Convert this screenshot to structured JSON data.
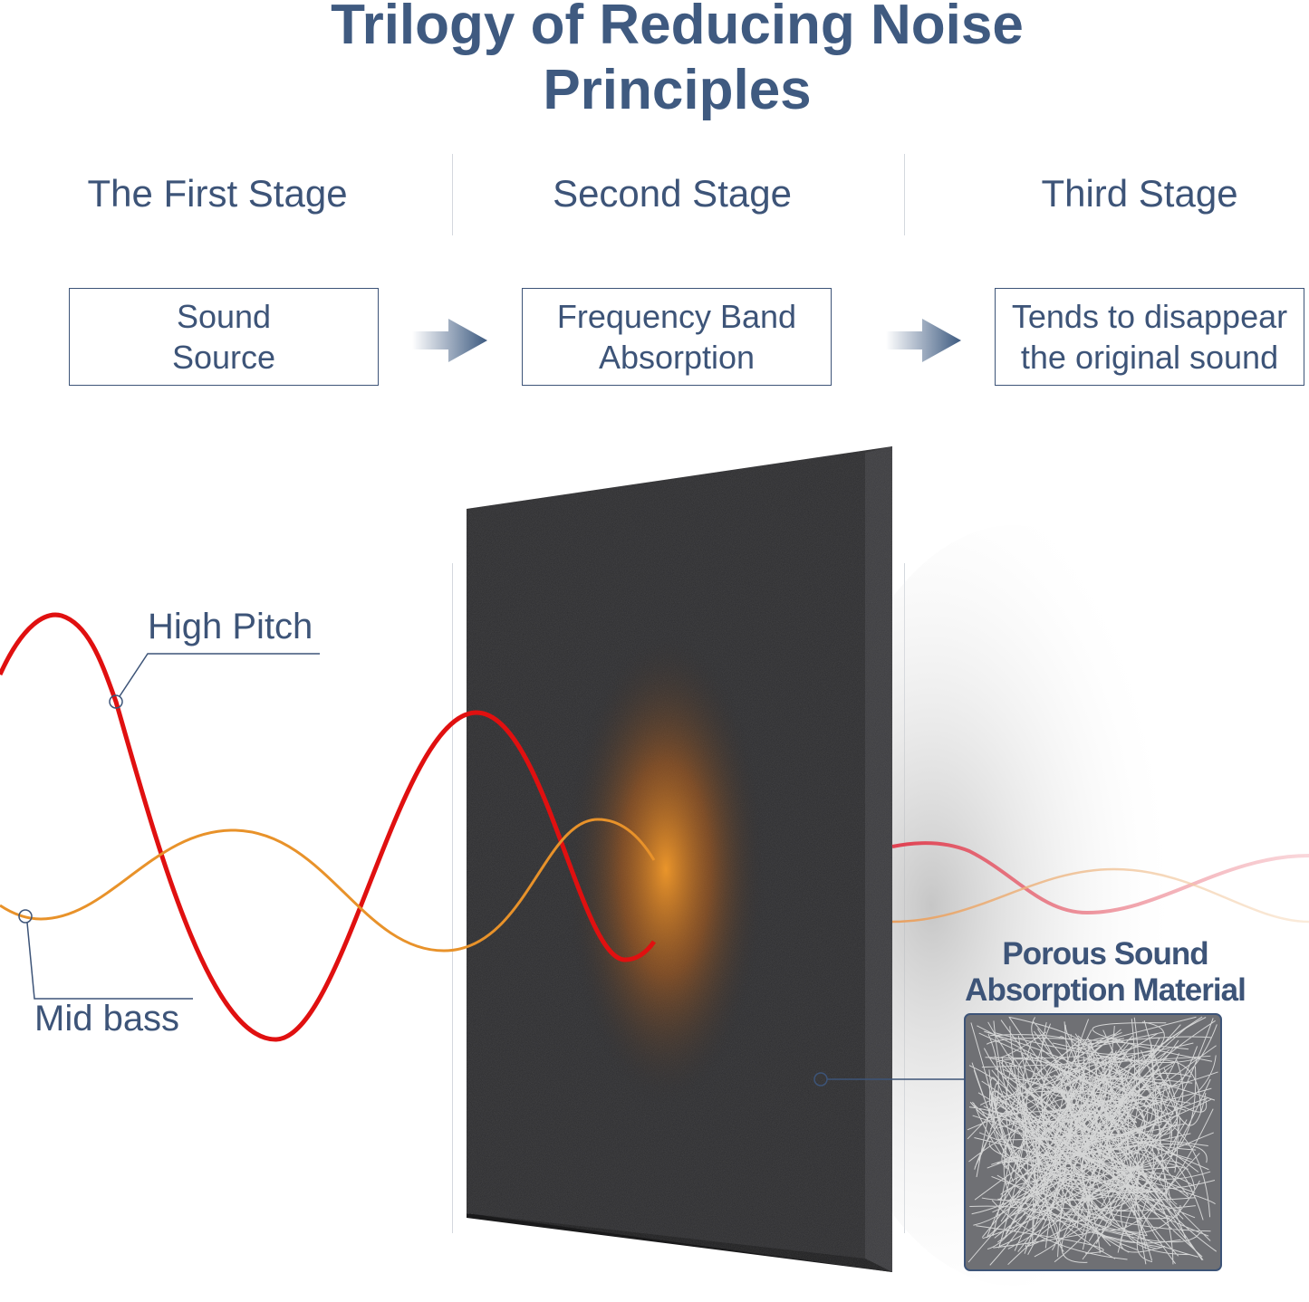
{
  "title": {
    "line1": "Trilogy of Reducing Noise",
    "line2": "Principles"
  },
  "stages": [
    {
      "heading": "The First Stage",
      "box_line1": "Sound",
      "box_line2": "Source"
    },
    {
      "heading": "Second Stage",
      "box_line1": "Frequency Band",
      "box_line2": "Absorption"
    },
    {
      "heading": "Third Stage",
      "box_line1": "Tends to disappear",
      "box_line2": "the original sound"
    }
  ],
  "labels": {
    "high_pitch": "High Pitch",
    "mid_bass": "Mid bass",
    "porous_line1": "Porous Sound",
    "porous_line2": "Absorption Material"
  },
  "colors": {
    "text": "#3d5478",
    "title": "#3f5a80",
    "high_pitch_wave": "#e01010",
    "mid_bass_wave": "#e8922a",
    "panel": "#2a2a2c"
  },
  "icons": {
    "arrow": "arrow-right-icon"
  }
}
